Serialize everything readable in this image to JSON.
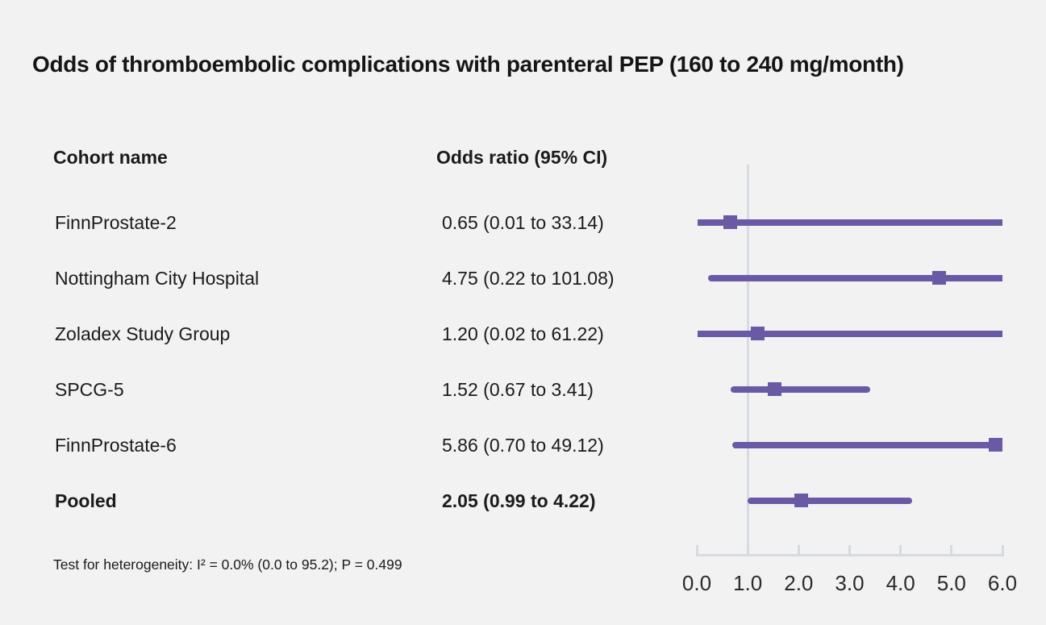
{
  "title": "Odds of thromboembolic complications with parenteral PEP (160 to 240 mg/month)",
  "table": {
    "col1_header": "Cohort name",
    "col2_header": "Odds ratio (95% CI)"
  },
  "footnote": "Test for heterogeneity: I² = 0.0% (0.0 to 95.2); P = 0.499",
  "colors": {
    "background": "#f2f2f2",
    "series": "#6a5aa6",
    "axis": "#d6dae1",
    "text": "#1b1b1b"
  },
  "chart_data": {
    "type": "forest",
    "title": "Odds of thromboembolic complications with parenteral PEP (160 to 240 mg/month)",
    "xlabel": "",
    "xlim": [
      0,
      6
    ],
    "x_tick_labels": [
      "0.0",
      "1.0",
      "2.0",
      "3.0",
      "4.0",
      "5.0",
      "6.0"
    ],
    "reference_line_x": 1.0,
    "grid": false,
    "legend": false,
    "studies": [
      {
        "name": "FinnProstate-2",
        "or": 0.65,
        "ci_lower": 0.01,
        "ci_upper": 33.14,
        "label": "0.65 (0.01 to 33.14)",
        "bold": false
      },
      {
        "name": "Nottingham City Hospital",
        "or": 4.75,
        "ci_lower": 0.22,
        "ci_upper": 101.08,
        "label": "4.75 (0.22 to 101.08)",
        "bold": false
      },
      {
        "name": "Zoladex Study Group",
        "or": 1.2,
        "ci_lower": 0.02,
        "ci_upper": 61.22,
        "label": "1.20 (0.02 to 61.22)",
        "bold": false
      },
      {
        "name": "SPCG-5",
        "or": 1.52,
        "ci_lower": 0.67,
        "ci_upper": 3.41,
        "label": "1.52 (0.67 to 3.41)",
        "bold": false
      },
      {
        "name": "FinnProstate-6",
        "or": 5.86,
        "ci_lower": 0.7,
        "ci_upper": 49.12,
        "label": "5.86 (0.70 to 49.12)",
        "bold": false
      },
      {
        "name": "Pooled",
        "or": 2.05,
        "ci_lower": 0.99,
        "ci_upper": 4.22,
        "label": "2.05 (0.99 to 4.22)",
        "bold": true
      }
    ]
  }
}
